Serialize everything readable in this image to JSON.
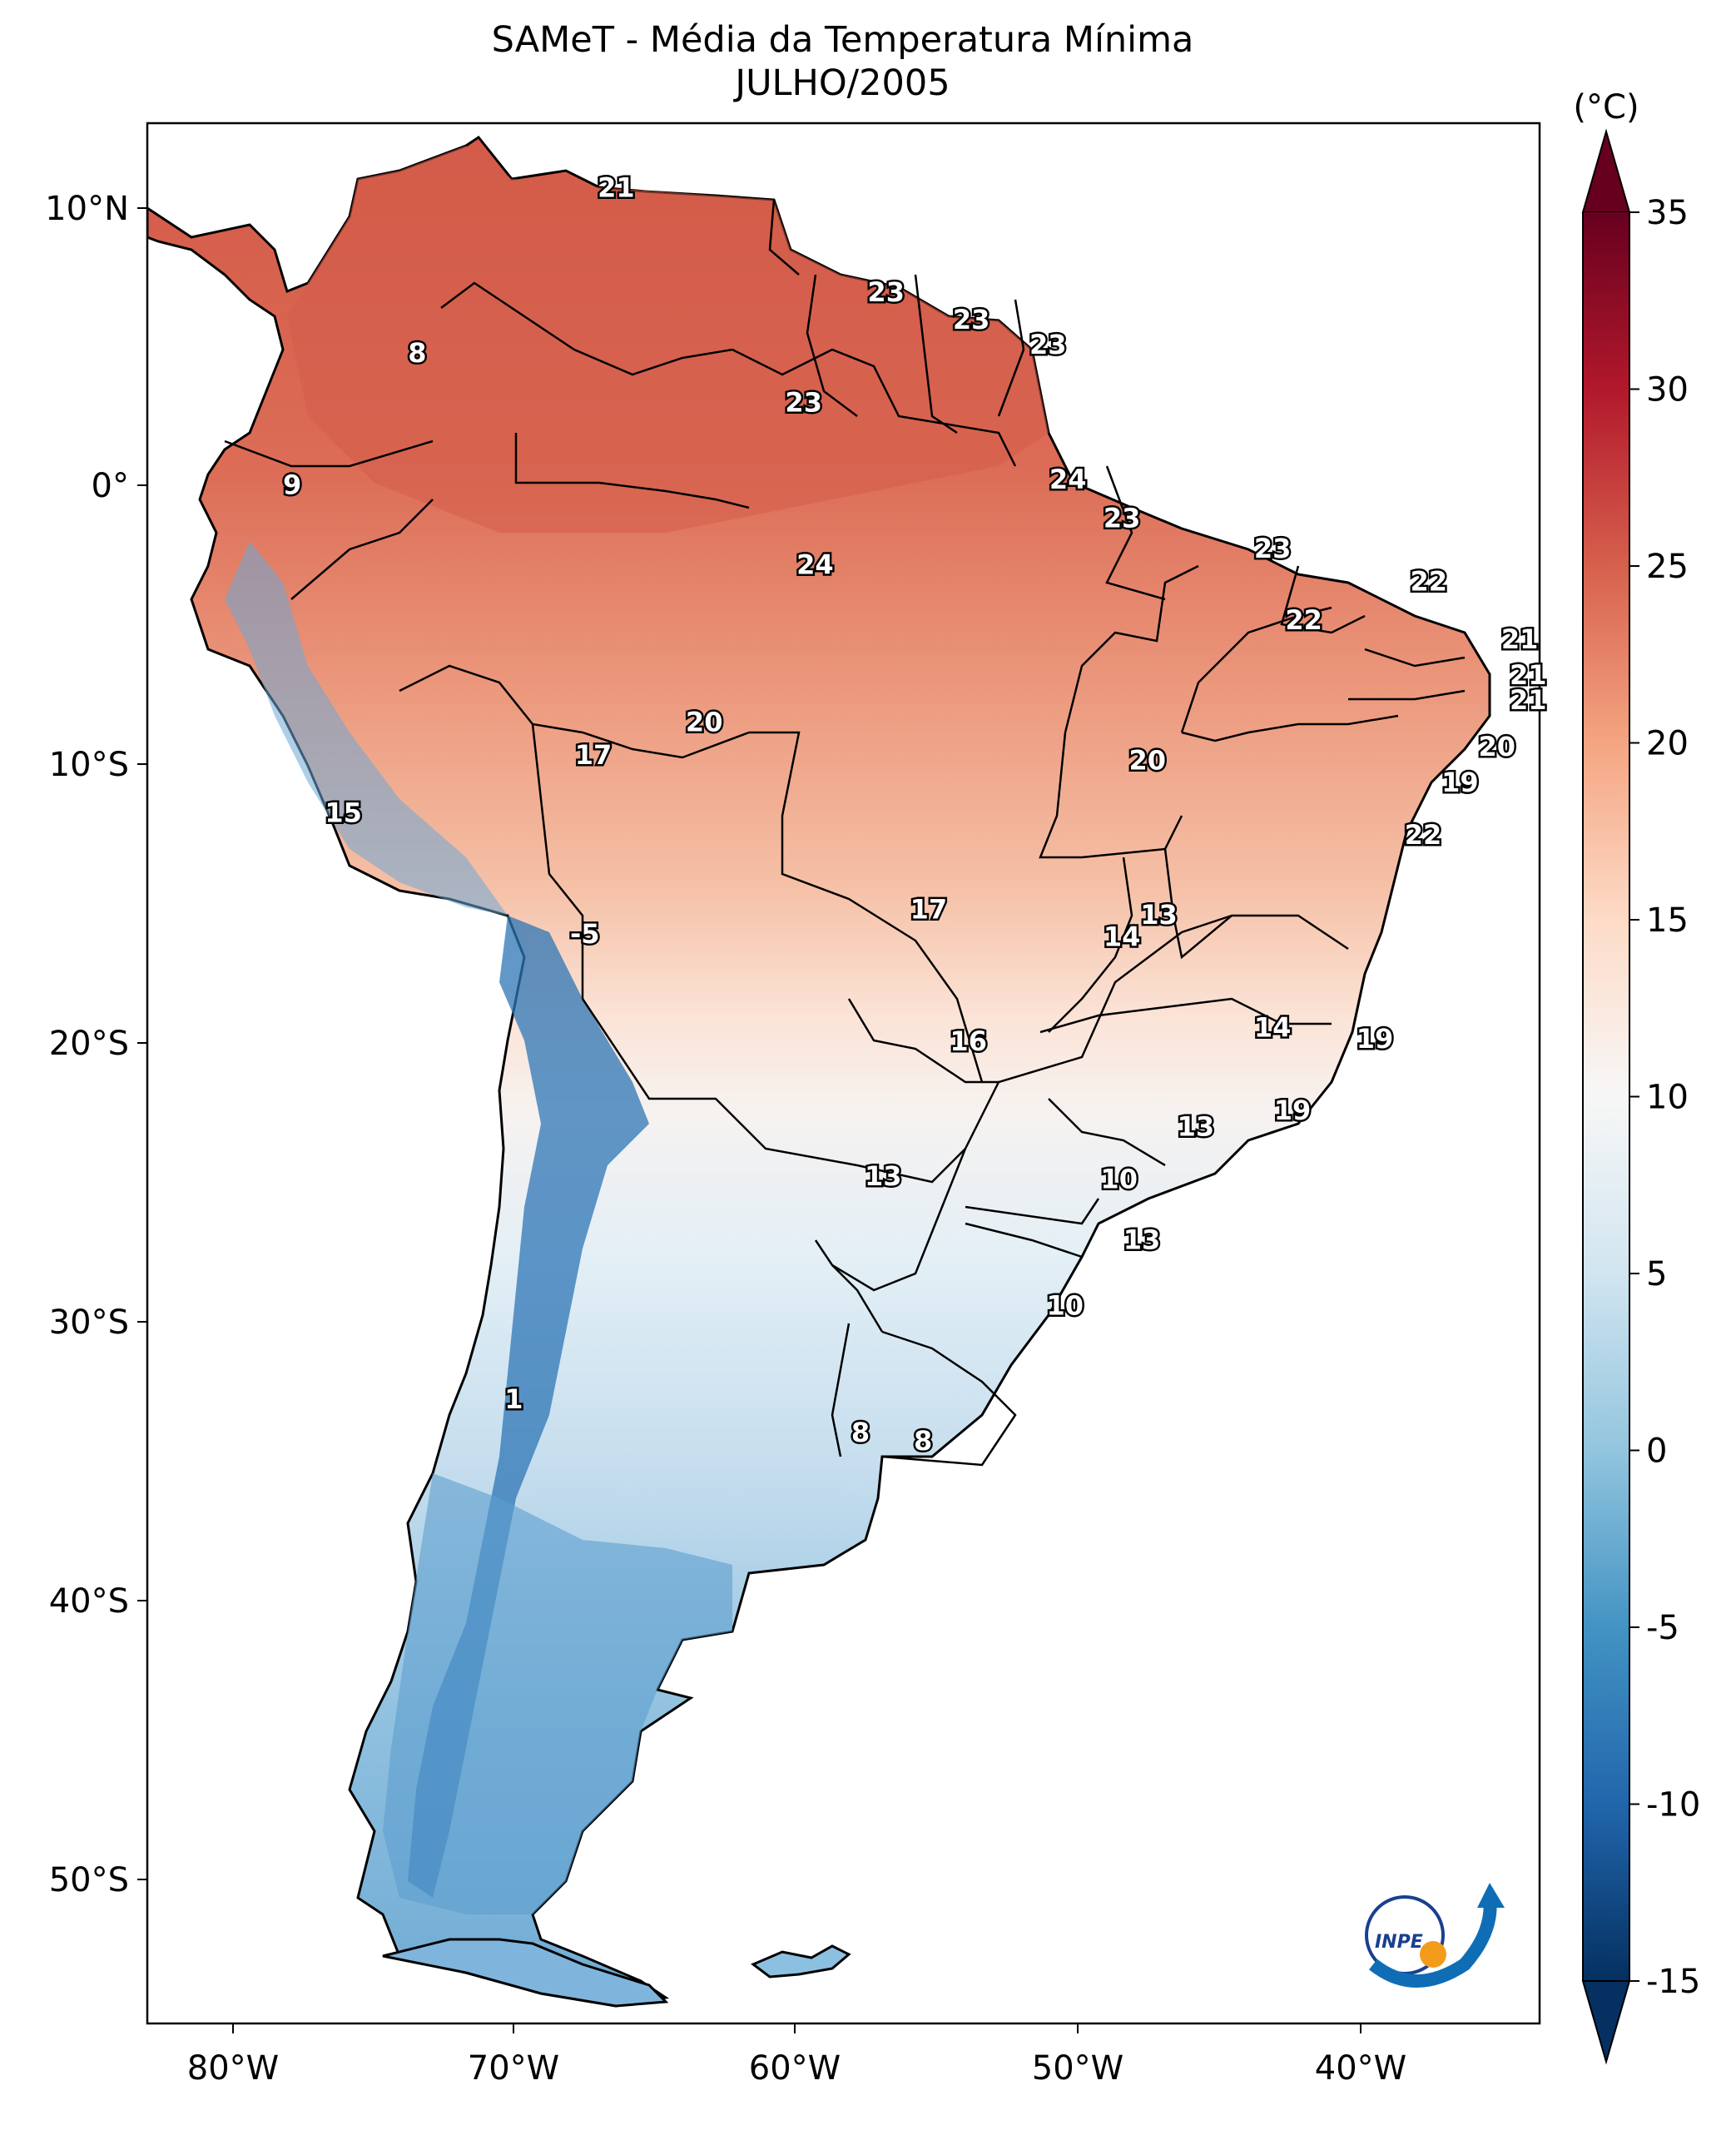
{
  "title": {
    "line1": "SAMeT - Média da Temperatura Mínima",
    "line2": "JULHO/2005"
  },
  "map": {
    "lon_labels": [
      "80°W",
      "70°W",
      "60°W",
      "50°W",
      "40°W"
    ],
    "lat_labels": [
      "10°N",
      "0°",
      "10°S",
      "20°S",
      "30°S",
      "40°S",
      "50°S"
    ],
    "extent": {
      "lon": [
        -83.5,
        -34.5
      ],
      "lat": [
        -56.0,
        13.0
      ]
    },
    "value_labels": [
      {
        "text": "21",
        "lon": -67.0,
        "lat": 10.6
      },
      {
        "text": "8",
        "lon": -74.0,
        "lat": 4.6
      },
      {
        "text": "9",
        "lon": -78.4,
        "lat": -0.2
      },
      {
        "text": "23",
        "lon": -57.5,
        "lat": 6.8
      },
      {
        "text": "23",
        "lon": -54.5,
        "lat": 5.8
      },
      {
        "text": "23",
        "lon": -51.8,
        "lat": 4.9
      },
      {
        "text": "23",
        "lon": -60.4,
        "lat": 2.8
      },
      {
        "text": "24",
        "lon": -51.1,
        "lat": 0.0
      },
      {
        "text": "23",
        "lon": -49.2,
        "lat": -1.4
      },
      {
        "text": "23",
        "lon": -43.9,
        "lat": -2.5
      },
      {
        "text": "24",
        "lon": -60.0,
        "lat": -3.1
      },
      {
        "text": "22",
        "lon": -38.4,
        "lat": -3.7
      },
      {
        "text": "22",
        "lon": -42.8,
        "lat": -5.1
      },
      {
        "text": "21",
        "lon": -35.2,
        "lat": -5.8
      },
      {
        "text": "21",
        "lon": -34.9,
        "lat": -7.1
      },
      {
        "text": "21",
        "lon": -34.9,
        "lat": -8.0
      },
      {
        "text": "20",
        "lon": -63.9,
        "lat": -8.8
      },
      {
        "text": "17",
        "lon": -67.8,
        "lat": -10.0
      },
      {
        "text": "20",
        "lon": -48.3,
        "lat": -10.2
      },
      {
        "text": "20",
        "lon": -36.0,
        "lat": -9.7
      },
      {
        "text": "19",
        "lon": -37.3,
        "lat": -11.0
      },
      {
        "text": "15",
        "lon": -76.6,
        "lat": -12.1
      },
      {
        "text": "22",
        "lon": -38.6,
        "lat": -12.9
      },
      {
        "text": "17",
        "lon": -56.0,
        "lat": -15.6
      },
      {
        "text": "13",
        "lon": -47.9,
        "lat": -15.8
      },
      {
        "text": "14",
        "lon": -49.2,
        "lat": -16.6
      },
      {
        "text": "-5",
        "lon": -68.1,
        "lat": -16.5
      },
      {
        "text": "14",
        "lon": -43.9,
        "lat": -19.9
      },
      {
        "text": "19",
        "lon": -40.3,
        "lat": -20.3
      },
      {
        "text": "16",
        "lon": -54.6,
        "lat": -20.4
      },
      {
        "text": "13",
        "lon": -46.6,
        "lat": -23.5
      },
      {
        "text": "19",
        "lon": -43.2,
        "lat": -22.9
      },
      {
        "text": "13",
        "lon": -57.6,
        "lat": -25.3
      },
      {
        "text": "10",
        "lon": -49.3,
        "lat": -25.4
      },
      {
        "text": "13",
        "lon": -48.5,
        "lat": -27.6
      },
      {
        "text": "10",
        "lon": -51.2,
        "lat": -30.0
      },
      {
        "text": "1",
        "lon": -70.6,
        "lat": -33.4
      },
      {
        "text": "8",
        "lon": -58.4,
        "lat": -34.6
      },
      {
        "text": "8",
        "lon": -56.2,
        "lat": -34.9
      }
    ]
  },
  "colorbar": {
    "unit_label": "(°C)",
    "tick_labels": [
      "35",
      "30",
      "25",
      "20",
      "15",
      "10",
      "5",
      "0",
      "-5",
      "-10",
      "-15"
    ],
    "range": [
      -15,
      35
    ],
    "cmap_stops": [
      "#053061",
      "#2166ac",
      "#4393c3",
      "#92c5de",
      "#d1e5f0",
      "#f7f7f7",
      "#fddbc7",
      "#f4a582",
      "#d6604d",
      "#b2182b",
      "#67001f"
    ]
  },
  "logo": {
    "text": "INPE"
  },
  "colors": {
    "warm": "#d6604d",
    "cool": "#4393c3",
    "accent_orange": "#f39c1b",
    "logo_blue": "#0f6db5"
  }
}
